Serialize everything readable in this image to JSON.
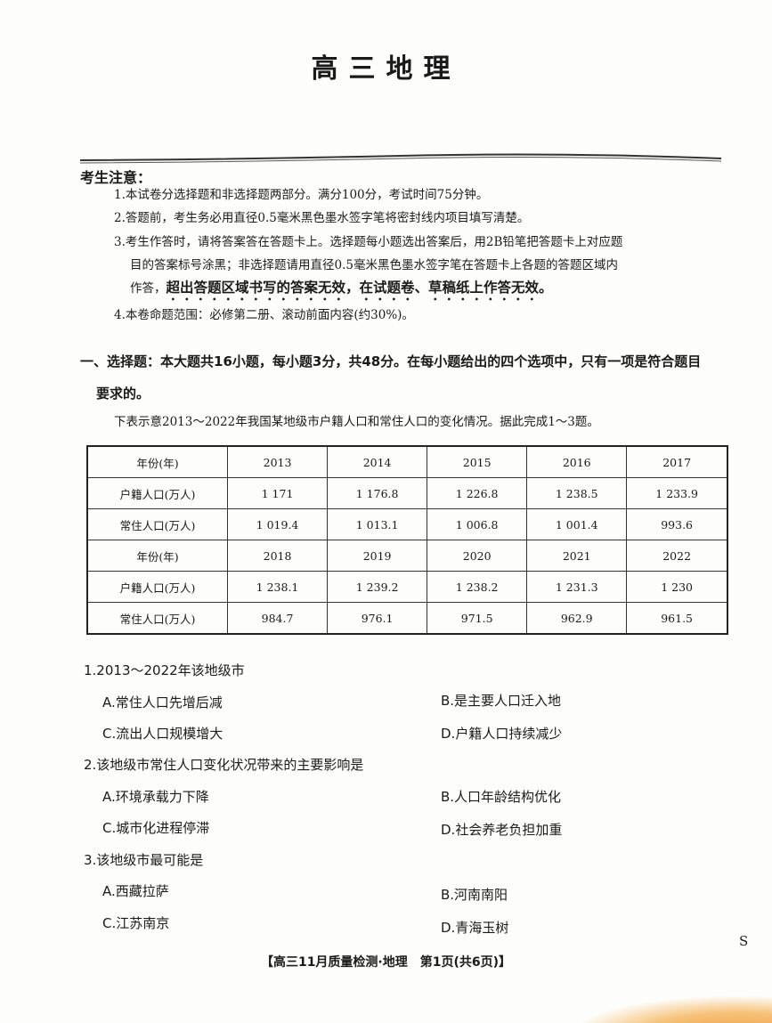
{
  "title": "高三地理",
  "notice": {
    "heading": "考生注意：",
    "items": [
      "1.本试卷分选择题和非选择题两部分。满分100分，考试时间75分钟。",
      "2.答题前，考生务必用直径0.5毫米黑色墨水签字笔将密封线内项目填写清楚。",
      "3.考生作答时，请将答案答在答题卡上。选择题每小题选出答案后，用2B铅笔把答题卡上对应题",
      "目的答案标号涂黑；非选择题请用直径0.5毫米黑色墨水签字笔在答题卡上各题的答题区域内",
      "作答，",
      "4.本卷命题范围：必修第二册、滚动前面内容(约30%)。"
    ],
    "emphasis": "超出答题区域书写的答案无效，在试题卷、草稿纸上作答无效。"
  },
  "section": {
    "line1": "一、选择题：本大题共16小题，每小题3分，共48分。在每小题给出的四个选项中，只有一项是符合题目",
    "line2": "要求的。",
    "intro": "下表示意2013～2022年我国某地级市户籍人口和常住人口的变化情况。据此完成1～3题。"
  },
  "table": {
    "rows": [
      [
        "年份(年)",
        "2013",
        "2014",
        "2015",
        "2016",
        "2017"
      ],
      [
        "户籍人口(万人)",
        "1 171",
        "1 176.8",
        "1 226.8",
        "1 238.5",
        "1 233.9"
      ],
      [
        "常住人口(万人)",
        "1 019.4",
        "1 013.1",
        "1 006.8",
        "1 001.4",
        "993.6"
      ],
      [
        "年份(年)",
        "2018",
        "2019",
        "2020",
        "2021",
        "2022"
      ],
      [
        "户籍人口(万人)",
        "1 238.1",
        "1 239.2",
        "1 238.2",
        "1 231.3",
        "1 230"
      ],
      [
        "常住人口(万人)",
        "984.7",
        "976.1",
        "971.5",
        "962.9",
        "961.5"
      ]
    ]
  },
  "questions": [
    {
      "stem": "1.2013～2022年该地级市",
      "options": [
        "A.常住人口先增后减",
        "B.是主要人口迁入地",
        "C.流出人口规模增大",
        "D.户籍人口持续减少"
      ]
    },
    {
      "stem": "2.该地级市常住人口变化状况带来的主要影响是",
      "options": [
        "A.环境承载力下降",
        "B.人口年龄结构优化",
        "C.城市化进程停滞",
        "D.社会养老负担加重"
      ]
    },
    {
      "stem": "3.该地级市最可能是",
      "options": [
        "A.西藏拉萨",
        "B.河南南阳",
        "C.江苏南京",
        "D.青海玉树"
      ]
    }
  ],
  "footer": "【高三11月质量检测·地理　第1页(共6页)】",
  "side_mark": "S"
}
